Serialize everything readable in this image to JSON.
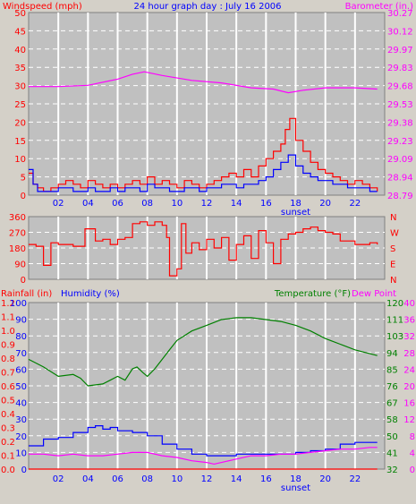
{
  "header": {
    "title": "24 hour graph day : July 16 2006",
    "left_label": "Windspeed (mph)",
    "right_label": "Barometer (in.)"
  },
  "colors": {
    "background": "#d4d0c8",
    "plot_bg": "#c0c0c0",
    "grid": "#ffffff",
    "red": "#ff0000",
    "blue": "#0000ff",
    "magenta": "#ff00ff",
    "green": "#008000"
  },
  "chart_data": [
    {
      "type": "line",
      "panel": "wind-barometer",
      "title": "24 hour graph day : July 16 2006",
      "ylabel_left": "Windspeed (mph)",
      "ylabel_right": "Barometer (in.)",
      "xticks": [
        "02",
        "04",
        "06",
        "08",
        "10",
        "12",
        "14",
        "16",
        "18",
        "20",
        "22"
      ],
      "x_marker": "sunset",
      "ylim_left": [
        0,
        50
      ],
      "yticks_left": [
        "0",
        "5",
        "10",
        "15",
        "20",
        "25",
        "30",
        "35",
        "40",
        "45",
        "50"
      ],
      "ylim_right": [
        28.79,
        30.27
      ],
      "yticks_right": [
        "28.79",
        "28.94",
        "29.09",
        "29.23",
        "29.38",
        "29.53",
        "29.68",
        "29.83",
        "29.97",
        "30.12",
        "30.27"
      ],
      "series": [
        {
          "axis": "right",
          "x": [
            0,
            2,
            4,
            6,
            7,
            7.8,
            9,
            11,
            13,
            15,
            16.5,
            17.5,
            18.5,
            20,
            22,
            23.5
          ],
          "y": [
            29.67,
            29.67,
            29.68,
            29.73,
            29.77,
            29.79,
            29.76,
            29.72,
            29.7,
            29.66,
            29.65,
            29.62,
            29.64,
            29.66,
            29.66,
            29.65
          ]
        },
        {
          "axis": "left",
          "x": [
            0,
            0.3,
            0.6,
            1,
            1.5,
            2,
            2.5,
            3,
            3.5,
            4,
            4.5,
            5,
            5.5,
            6,
            6.5,
            7,
            7.5,
            8,
            8.5,
            9,
            9.5,
            10,
            10.5,
            11,
            11.5,
            12,
            12.5,
            13,
            13.5,
            14,
            14.5,
            15,
            15.5,
            16,
            16.5,
            17,
            17.3,
            17.6,
            18,
            18.5,
            19,
            19.5,
            20,
            20.5,
            21,
            21.5,
            22,
            22.5,
            23,
            23.5
          ],
          "y": [
            6,
            3,
            2,
            1,
            2,
            3,
            4,
            3,
            2,
            4,
            3,
            2,
            3,
            2,
            3,
            4,
            3,
            5,
            3,
            4,
            3,
            2,
            4,
            3,
            2,
            3,
            4,
            5,
            6,
            5,
            7,
            5,
            8,
            10,
            12,
            14,
            18,
            21,
            15,
            12,
            9,
            7,
            6,
            5,
            4,
            3,
            4,
            3,
            2,
            1
          ]
        },
        {
          "axis": "left",
          "x": [
            0,
            0.3,
            0.6,
            1,
            1.5,
            2,
            2.5,
            3,
            3.5,
            4,
            4.5,
            5,
            5.5,
            6,
            6.5,
            7,
            7.5,
            8,
            8.5,
            9,
            9.5,
            10,
            10.5,
            11,
            11.5,
            12,
            12.5,
            13,
            13.5,
            14,
            14.5,
            15,
            15.5,
            16,
            16.5,
            17,
            17.5,
            18,
            18.5,
            19,
            19.5,
            20,
            20.5,
            21,
            21.5,
            22,
            22.5,
            23,
            23.5
          ],
          "y": [
            7,
            3,
            1,
            1,
            1,
            2,
            2,
            1,
            1,
            2,
            1,
            1,
            2,
            1,
            2,
            2,
            1,
            3,
            2,
            2,
            1,
            1,
            2,
            2,
            1,
            2,
            2,
            3,
            3,
            2,
            3,
            3,
            4,
            5,
            7,
            9,
            11,
            8,
            6,
            5,
            4,
            4,
            3,
            3,
            2,
            2,
            2,
            1,
            1
          ]
        }
      ]
    },
    {
      "type": "line",
      "panel": "wind-direction",
      "xticks": [
        "02",
        "04",
        "06",
        "08",
        "10",
        "12",
        "14",
        "16",
        "18",
        "20",
        "22"
      ],
      "ylim": [
        0,
        360
      ],
      "yticks": [
        "0",
        "90",
        "180",
        "270",
        "360"
      ],
      "yticks_right": [
        "N",
        "W",
        "S",
        "E",
        "N"
      ],
      "series": [
        {
          "x": [
            0,
            0.5,
            1,
            1.5,
            2,
            3,
            3.8,
            4.5,
            5,
            5.5,
            6,
            6.5,
            7,
            7.5,
            8,
            8.5,
            9,
            9.3,
            9.5,
            10,
            10.3,
            10.6,
            11,
            11.5,
            12,
            12.5,
            13,
            13.5,
            14,
            14.5,
            15,
            15.5,
            16,
            16.5,
            17,
            17.5,
            18,
            18.5,
            19,
            19.5,
            20,
            20.5,
            21,
            22,
            23,
            23.5
          ],
          "y": [
            200,
            190,
            80,
            210,
            200,
            190,
            290,
            220,
            230,
            200,
            230,
            240,
            320,
            330,
            310,
            330,
            310,
            240,
            20,
            60,
            320,
            150,
            210,
            170,
            230,
            180,
            240,
            110,
            200,
            250,
            120,
            280,
            210,
            90,
            230,
            260,
            270,
            290,
            300,
            280,
            270,
            260,
            220,
            200,
            210,
            200
          ]
        }
      ]
    },
    {
      "type": "line",
      "panel": "rain-humidity-temperature",
      "ylabel_left_1": "Rainfall (in)",
      "ylabel_left_2": "Humidity (%)",
      "ylabel_right_1": "Temperature (°F)",
      "ylabel_right_2": "Dew Point",
      "xticks": [
        "02",
        "04",
        "06",
        "08",
        "10",
        "12",
        "14",
        "16",
        "18",
        "20",
        "22"
      ],
      "x_marker": "sunset",
      "ylim_rain": [
        0,
        1.2
      ],
      "yticks_rain": [
        "0.0",
        "0.1",
        "0.2",
        "0.3",
        "0.4",
        "0.5",
        "0.6",
        "0.7",
        "0.8",
        "0.9",
        "1.0",
        "1.1",
        "1.2"
      ],
      "ylim_humidity": [
        0,
        100
      ],
      "yticks_humidity": [
        "0",
        "10",
        "20",
        "30",
        "40",
        "50",
        "60",
        "70",
        "80",
        "90",
        "100"
      ],
      "ylim_temperature": [
        32,
        120
      ],
      "yticks_temperature": [
        "32",
        "41",
        "50",
        "58",
        "67",
        "76",
        "85",
        "94",
        "103",
        "111",
        "120"
      ],
      "yticks_dewpoint": [
        "0",
        "4",
        "8",
        "12",
        "16",
        "20",
        "24",
        "28",
        "32",
        "36",
        "40"
      ],
      "series": [
        {
          "axis": "temperature",
          "x": [
            0,
            1,
            2,
            3,
            3.5,
            4,
            5,
            5.5,
            6,
            6.5,
            7,
            7.3,
            7.7,
            8,
            8.5,
            9,
            9.5,
            10,
            11,
            12,
            13,
            14,
            15,
            16,
            17,
            18,
            19,
            20,
            21,
            22,
            23,
            23.5
          ],
          "y": [
            90,
            86,
            81,
            82,
            80,
            76,
            77,
            79,
            81,
            79,
            85,
            86,
            83,
            81,
            85,
            90,
            95,
            100,
            105,
            108,
            111,
            112,
            112,
            111,
            110,
            108,
            105,
            101,
            98,
            95,
            93,
            92
          ]
        },
        {
          "axis": "humidity",
          "x": [
            0,
            1,
            2,
            3,
            4,
            4.5,
            5,
            5.5,
            6,
            7,
            8,
            9,
            10,
            11,
            12,
            13,
            14,
            15,
            16,
            17,
            18,
            19,
            20,
            21,
            22,
            23,
            23.5
          ],
          "y": [
            14,
            18,
            19,
            22,
            25,
            26,
            24,
            25,
            23,
            22,
            20,
            15,
            12,
            9,
            8,
            8,
            9,
            9,
            9,
            9,
            10,
            11,
            12,
            15,
            16,
            16,
            16
          ]
        },
        {
          "axis": "humidity",
          "x": [
            0,
            1,
            2,
            3,
            4,
            5,
            6,
            7,
            8,
            9,
            10,
            11,
            12,
            12.5,
            13,
            14,
            15,
            16,
            17,
            18,
            19,
            20,
            21,
            22,
            23,
            23.5
          ],
          "y": [
            9,
            9,
            8,
            9,
            8,
            8,
            9,
            10,
            10,
            8,
            7,
            5,
            4,
            3,
            4,
            6,
            8,
            8,
            9,
            9,
            10,
            11,
            12,
            12,
            13,
            13
          ]
        },
        {
          "axis": "rain",
          "x": [
            0,
            23.5
          ],
          "y": [
            0,
            0
          ]
        }
      ]
    }
  ]
}
